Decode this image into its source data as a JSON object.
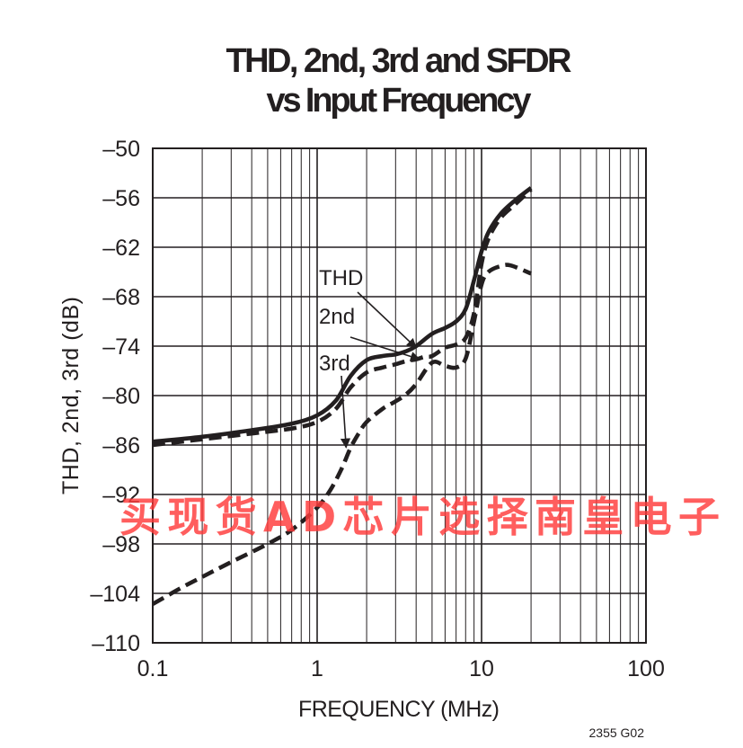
{
  "watermark": "买现货AD芯片选择南皇电子",
  "figure_id": "2355 G02",
  "colors": {
    "ink": "#231f20",
    "watermark": "#ff3b3b"
  },
  "chart_data": {
    "type": "line",
    "title_lines": [
      "THD, 2nd, 3rd and SFDR",
      "vs Input Frequency"
    ],
    "xlabel": "FREQUENCY (MHz)",
    "ylabel": "THD, 2nd, 3rd (dB)",
    "x_scale": "log",
    "xlim": [
      0.1,
      100
    ],
    "ylim": [
      -110,
      -50
    ],
    "x_ticks": [
      0.1,
      1,
      10,
      100
    ],
    "x_tick_labels": [
      "0.1",
      "1",
      "10",
      "100"
    ],
    "y_ticks": [
      -110,
      -104,
      -98,
      -92,
      -86,
      -80,
      -74,
      -68,
      -62,
      -56,
      -50
    ],
    "y_tick_labels": [
      "–110",
      "–104",
      "–98",
      "–92",
      "–86",
      "–80",
      "–74",
      "–68",
      "–62",
      "–56",
      "–50"
    ],
    "grid": true,
    "series": [
      {
        "name": "THD",
        "style": "solid",
        "points": [
          [
            0.1,
            -85.6
          ],
          [
            0.2,
            -85.0
          ],
          [
            0.4,
            -84.2
          ],
          [
            0.7,
            -83.4
          ],
          [
            1.0,
            -82.4
          ],
          [
            1.3,
            -80.6
          ],
          [
            1.6,
            -77.6
          ],
          [
            2.0,
            -75.7
          ],
          [
            2.5,
            -75.2
          ],
          [
            3.0,
            -75.0
          ],
          [
            3.5,
            -74.6
          ],
          [
            4.0,
            -74.0
          ],
          [
            5.0,
            -72.5
          ],
          [
            6.0,
            -71.8
          ],
          [
            7.0,
            -71.0
          ],
          [
            8.0,
            -69.5
          ],
          [
            9.0,
            -66.0
          ],
          [
            10.0,
            -62.5
          ],
          [
            11.0,
            -60.2
          ],
          [
            13.0,
            -58.0
          ],
          [
            16.0,
            -56.3
          ],
          [
            20.0,
            -54.8
          ]
        ]
      },
      {
        "name": "2nd",
        "style": "dashed",
        "points": [
          [
            0.1,
            -86.0
          ],
          [
            0.2,
            -85.3
          ],
          [
            0.4,
            -84.6
          ],
          [
            0.7,
            -84.0
          ],
          [
            1.0,
            -83.2
          ],
          [
            1.3,
            -81.6
          ],
          [
            1.6,
            -79.0
          ],
          [
            2.0,
            -77.2
          ],
          [
            2.5,
            -76.6
          ],
          [
            3.0,
            -76.2
          ],
          [
            3.5,
            -75.8
          ],
          [
            4.0,
            -75.6
          ],
          [
            4.5,
            -75.3
          ],
          [
            5.0,
            -75.2
          ],
          [
            6.0,
            -74.2
          ],
          [
            7.0,
            -73.8
          ],
          [
            8.0,
            -73.0
          ],
          [
            9.0,
            -70.0
          ],
          [
            10.0,
            -64.0
          ],
          [
            11.0,
            -61.0
          ],
          [
            13.0,
            -58.5
          ],
          [
            16.0,
            -56.8
          ],
          [
            20.0,
            -55.0
          ]
        ]
      },
      {
        "name": "3rd",
        "style": "dashed",
        "points": [
          [
            0.1,
            -105.3
          ],
          [
            0.15,
            -103.3
          ],
          [
            0.2,
            -102.0
          ],
          [
            0.3,
            -100.2
          ],
          [
            0.5,
            -98.0
          ],
          [
            0.7,
            -96.3
          ],
          [
            1.0,
            -93.6
          ],
          [
            1.2,
            -91.5
          ],
          [
            1.4,
            -89.0
          ],
          [
            1.6,
            -86.3
          ],
          [
            1.8,
            -84.5
          ],
          [
            2.0,
            -83.2
          ],
          [
            2.5,
            -81.6
          ],
          [
            3.0,
            -80.7
          ],
          [
            3.5,
            -79.8
          ],
          [
            4.0,
            -78.6
          ],
          [
            5.0,
            -76.0
          ],
          [
            6.0,
            -76.4
          ],
          [
            7.0,
            -76.6
          ],
          [
            8.0,
            -75.5
          ],
          [
            9.0,
            -71.0
          ],
          [
            10.0,
            -66.5
          ],
          [
            11.0,
            -65.0
          ],
          [
            13.0,
            -64.3
          ],
          [
            15.0,
            -64.2
          ],
          [
            20.0,
            -65.2
          ]
        ]
      }
    ],
    "annotations": [
      {
        "label": "THD",
        "target_x": 4.0,
        "target_y": -74.2
      },
      {
        "label": "2nd",
        "target_x": 4.2,
        "target_y": -75.6
      },
      {
        "label": "3rd",
        "target_x": 1.5,
        "target_y": -86.3
      }
    ]
  }
}
